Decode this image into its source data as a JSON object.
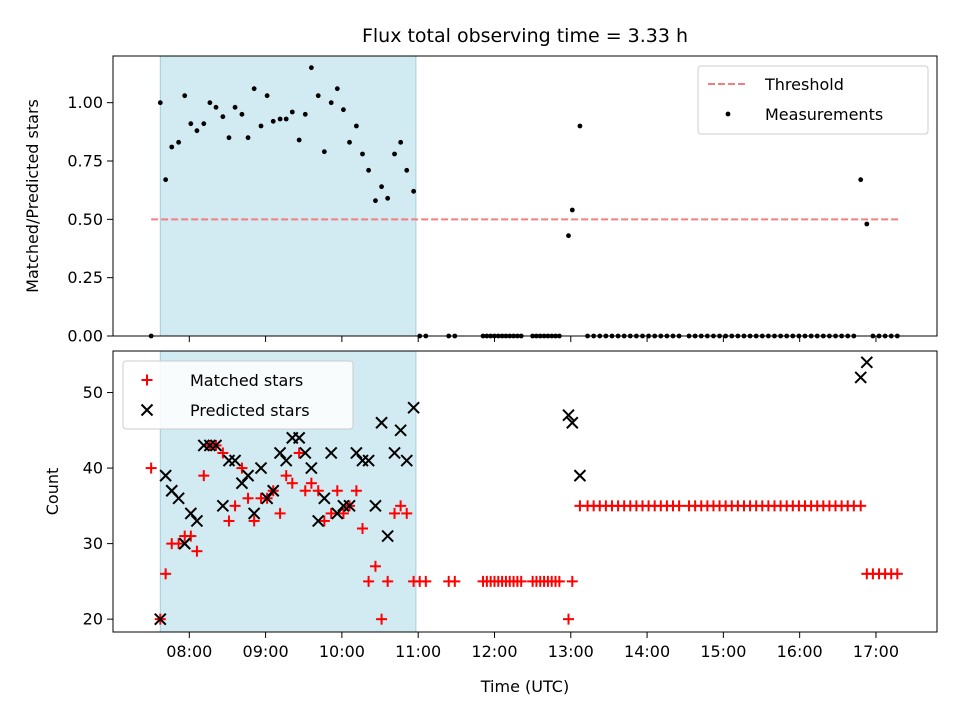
{
  "chart_data": [
    {
      "type": "scatter",
      "title": "Flux total observing time = 3.33 h",
      "xlabel": "",
      "ylabel": "Matched/Predicted stars",
      "x_unit": "hours UTC",
      "xlim": [
        7.0,
        17.8
      ],
      "ylim": [
        0.0,
        1.2
      ],
      "yticks": [
        "0.00",
        "0.25",
        "0.50",
        "0.75",
        "1.00"
      ],
      "ytick_values": [
        0.0,
        0.25,
        0.5,
        0.75,
        1.0
      ],
      "shaded_region": {
        "x_start": 7.62,
        "x_end": 10.97,
        "color": "#add8e6"
      },
      "legend": {
        "placement": "top-right"
      },
      "series": [
        {
          "name": "Threshold",
          "kind": "line",
          "style": "dashed",
          "color": "#f08080",
          "x": [
            7.5,
            17.33
          ],
          "y": [
            0.5,
            0.5
          ]
        },
        {
          "name": "Measurements",
          "kind": "points",
          "color": "#000000",
          "x": [
            7.5,
            7.62,
            7.69,
            7.77,
            7.86,
            7.94,
            8.02,
            8.1,
            8.19,
            8.27,
            8.35,
            8.44,
            8.52,
            8.6,
            8.69,
            8.77,
            8.85,
            8.94,
            9.02,
            9.1,
            9.19,
            9.27,
            9.35,
            9.44,
            9.52,
            9.6,
            9.69,
            9.77,
            9.86,
            9.94,
            10.02,
            10.1,
            10.19,
            10.27,
            10.35,
            10.44,
            10.52,
            10.6,
            10.69,
            10.77,
            10.85,
            10.94,
            11.02,
            11.1,
            11.4,
            11.48,
            11.85,
            11.9,
            11.95,
            12.0,
            12.05,
            12.1,
            12.15,
            12.2,
            12.25,
            12.3,
            12.35,
            12.5,
            12.55,
            12.6,
            12.65,
            12.7,
            12.75,
            12.8,
            12.85,
            12.97,
            13.02,
            13.12,
            13.22,
            13.3,
            13.38,
            13.46,
            13.54,
            13.62,
            13.7,
            13.78,
            13.86,
            13.94,
            14.02,
            14.1,
            14.18,
            14.26,
            14.34,
            14.42,
            14.55,
            14.63,
            14.71,
            14.79,
            14.87,
            14.95,
            15.03,
            15.11,
            15.19,
            15.27,
            15.35,
            15.43,
            15.51,
            15.59,
            15.67,
            15.75,
            15.83,
            15.91,
            15.99,
            16.07,
            16.15,
            16.23,
            16.31,
            16.39,
            16.47,
            16.55,
            16.63,
            16.71,
            16.8,
            16.88,
            16.96,
            17.04,
            17.12,
            17.2,
            17.28
          ],
          "y": [
            0.0,
            1.0,
            0.67,
            0.81,
            0.83,
            1.03,
            0.91,
            0.88,
            0.91,
            1.0,
            0.98,
            0.94,
            0.85,
            0.98,
            0.95,
            0.85,
            1.06,
            0.9,
            1.03,
            0.92,
            0.93,
            0.93,
            0.96,
            0.84,
            0.95,
            1.15,
            1.03,
            0.79,
            1.0,
            1.06,
            0.97,
            0.83,
            0.9,
            0.78,
            0.71,
            0.58,
            0.64,
            0.59,
            0.78,
            0.83,
            0.71,
            0.62,
            0.0,
            0.0,
            0.0,
            0.0,
            0.0,
            0.0,
            0.0,
            0.0,
            0.0,
            0.0,
            0.0,
            0.0,
            0.0,
            0.0,
            0.0,
            0.0,
            0.0,
            0.0,
            0.0,
            0.0,
            0.0,
            0.0,
            0.0,
            0.43,
            0.54,
            0.9,
            0.0,
            0.0,
            0.0,
            0.0,
            0.0,
            0.0,
            0.0,
            0.0,
            0.0,
            0.0,
            0.0,
            0.0,
            0.0,
            0.0,
            0.0,
            0.0,
            0.0,
            0.0,
            0.0,
            0.0,
            0.0,
            0.0,
            0.0,
            0.0,
            0.0,
            0.0,
            0.0,
            0.0,
            0.0,
            0.0,
            0.0,
            0.0,
            0.0,
            0.0,
            0.0,
            0.0,
            0.0,
            0.0,
            0.0,
            0.0,
            0.0,
            0.0,
            0.0,
            0.0,
            0.67,
            0.48,
            0.0,
            0.0,
            0.0,
            0.0,
            0.0
          ]
        }
      ]
    },
    {
      "type": "scatter",
      "title": "",
      "xlabel": "Time (UTC)",
      "ylabel": "Count",
      "x_unit": "hours UTC",
      "xlim": [
        7.0,
        17.8
      ],
      "ylim": [
        18.3,
        55.5
      ],
      "yticks": [
        "20",
        "30",
        "40",
        "50"
      ],
      "ytick_values": [
        20,
        30,
        40,
        50
      ],
      "xticks": [
        "08:00",
        "09:00",
        "10:00",
        "11:00",
        "12:00",
        "13:00",
        "14:00",
        "15:00",
        "16:00",
        "17:00"
      ],
      "xtick_values": [
        8,
        9,
        10,
        11,
        12,
        13,
        14,
        15,
        16,
        17
      ],
      "shaded_region": {
        "x_start": 7.62,
        "x_end": 10.97,
        "color": "#add8e6"
      },
      "legend": {
        "placement": "top-left"
      },
      "series": [
        {
          "name": "Matched stars",
          "kind": "plus",
          "color": "#ff0000",
          "x": [
            7.5,
            7.62,
            7.69,
            7.77,
            7.86,
            7.94,
            8.02,
            8.1,
            8.19,
            8.27,
            8.35,
            8.44,
            8.52,
            8.6,
            8.69,
            8.77,
            8.85,
            8.94,
            9.02,
            9.1,
            9.19,
            9.27,
            9.35,
            9.44,
            9.52,
            9.6,
            9.69,
            9.77,
            9.86,
            9.94,
            10.02,
            10.1,
            10.19,
            10.27,
            10.35,
            10.44,
            10.52,
            10.6,
            10.69,
            10.77,
            10.85,
            10.94,
            11.02,
            11.1,
            11.4,
            11.48,
            11.85,
            11.9,
            11.95,
            12.0,
            12.05,
            12.1,
            12.15,
            12.2,
            12.25,
            12.3,
            12.35,
            12.5,
            12.55,
            12.6,
            12.65,
            12.7,
            12.75,
            12.8,
            12.85,
            12.97,
            13.02,
            13.12,
            13.22,
            13.3,
            13.38,
            13.46,
            13.54,
            13.62,
            13.7,
            13.78,
            13.86,
            13.94,
            14.02,
            14.1,
            14.18,
            14.26,
            14.34,
            14.42,
            14.55,
            14.63,
            14.71,
            14.79,
            14.87,
            14.95,
            15.03,
            15.11,
            15.19,
            15.27,
            15.35,
            15.43,
            15.51,
            15.59,
            15.67,
            15.75,
            15.83,
            15.91,
            15.99,
            16.07,
            16.15,
            16.23,
            16.31,
            16.39,
            16.47,
            16.55,
            16.63,
            16.71,
            16.8,
            16.88,
            16.96,
            17.04,
            17.12,
            17.2,
            17.28
          ],
          "y": [
            40,
            20,
            26,
            30,
            30,
            31,
            31,
            29,
            39,
            43,
            43,
            42,
            33,
            35,
            40,
            36,
            33,
            36,
            36,
            37,
            34,
            39,
            38,
            42,
            37,
            38,
            37,
            33,
            34,
            37,
            34,
            35,
            37,
            32,
            25,
            27,
            20,
            25,
            34,
            35,
            34,
            25,
            25,
            25,
            25,
            25,
            25,
            25,
            25,
            25,
            25,
            25,
            25,
            25,
            25,
            25,
            25,
            25,
            25,
            25,
            25,
            25,
            25,
            25,
            25,
            20,
            25,
            35,
            35,
            35,
            35,
            35,
            35,
            35,
            35,
            35,
            35,
            35,
            35,
            35,
            35,
            35,
            35,
            35,
            35,
            35,
            35,
            35,
            35,
            35,
            35,
            35,
            35,
            35,
            35,
            35,
            35,
            35,
            35,
            35,
            35,
            35,
            35,
            35,
            35,
            35,
            35,
            35,
            35,
            35,
            35,
            35,
            35,
            26,
            26,
            26,
            26,
            26,
            26
          ]
        },
        {
          "name": "Predicted stars",
          "kind": "cross",
          "color": "#000000",
          "x": [
            7.62,
            7.69,
            7.77,
            7.86,
            7.94,
            8.02,
            8.1,
            8.19,
            8.27,
            8.35,
            8.44,
            8.52,
            8.6,
            8.69,
            8.77,
            8.85,
            8.94,
            9.02,
            9.1,
            9.19,
            9.27,
            9.35,
            9.44,
            9.52,
            9.6,
            9.69,
            9.77,
            9.86,
            9.94,
            10.02,
            10.1,
            10.19,
            10.27,
            10.35,
            10.44,
            10.52,
            10.6,
            10.69,
            10.77,
            10.85,
            10.94,
            12.97,
            13.02,
            13.12,
            16.8,
            16.88
          ],
          "y": [
            20,
            39,
            37,
            36,
            30,
            34,
            33,
            43,
            43,
            43,
            35,
            41,
            41,
            38,
            39,
            34,
            40,
            36,
            37,
            42,
            41,
            44,
            44,
            42,
            40,
            33,
            36,
            42,
            34,
            35,
            35,
            42,
            41,
            41,
            35,
            46,
            31,
            42,
            45,
            41,
            48,
            47,
            46,
            39,
            52,
            54
          ]
        }
      ]
    }
  ]
}
